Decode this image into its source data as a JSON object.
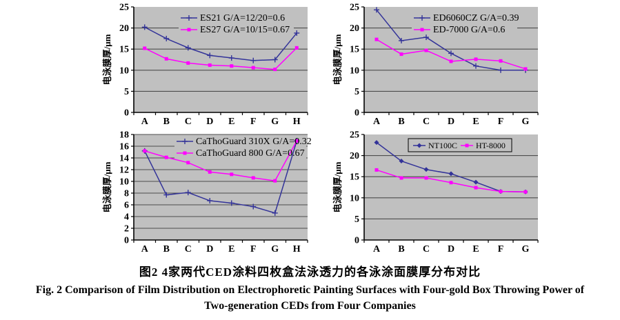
{
  "caption": {
    "zh": "图2  4家两代CED涂料四枚盒法泳透力的各泳涂面膜厚分布对比",
    "en_line1": "Fig. 2   Comparison of Film Distribution on Electrophoretic Painting Surfaces with Four-gold Box Throwing Power of",
    "en_line2": "Two-generation CEDs from Four Companies"
  },
  "colors": {
    "plot_bg": "#c0c0c0",
    "gridline": "#4d4d4d",
    "axis": "#000000",
    "series_blue": "#333399",
    "series_magenta": "#ff00ff"
  },
  "chart_data": [
    {
      "type": "line",
      "position": "top-left",
      "ylabel": "电泳膜厚/μm",
      "categories": [
        "A",
        "B",
        "C",
        "D",
        "E",
        "F",
        "G",
        "H"
      ],
      "ylim": [
        0,
        25
      ],
      "ytick_step": 5,
      "top_gridline": false,
      "grid": true,
      "legend_style": "stacked",
      "series": [
        {
          "name": "ES21 G/A=12/20=0.6",
          "color": "#333399",
          "marker": "plus",
          "values": [
            20.2,
            17.5,
            15.3,
            13.5,
            12.9,
            12.3,
            12.5,
            18.8
          ]
        },
        {
          "name": "ES27 G/A=10/15=0.67",
          "color": "#ff00ff",
          "marker": "square",
          "values": [
            15.2,
            12.7,
            11.7,
            11.2,
            11.0,
            10.6,
            10.2,
            15.3
          ]
        }
      ]
    },
    {
      "type": "line",
      "position": "top-right",
      "ylabel": "电泳膜厚/μm",
      "categories": [
        "A",
        "B",
        "C",
        "D",
        "E",
        "F",
        "G"
      ],
      "ylim": [
        0,
        25
      ],
      "ytick_step": 5,
      "top_gridline": false,
      "grid": true,
      "legend_style": "stacked",
      "series": [
        {
          "name": "ED6060CZ G/A=0.39",
          "color": "#333399",
          "marker": "plus",
          "values": [
            24.3,
            17.0,
            17.8,
            14.0,
            11.0,
            10.0,
            10.0
          ]
        },
        {
          "name": "ED-7000 G/A=0.6",
          "color": "#ff00ff",
          "marker": "square",
          "values": [
            17.3,
            13.8,
            14.7,
            12.1,
            12.6,
            12.2,
            10.3
          ]
        }
      ]
    },
    {
      "type": "line",
      "position": "bottom-left",
      "ylabel": "电泳膜厚/μm",
      "categories": [
        "A",
        "B",
        "C",
        "D",
        "E",
        "F",
        "G",
        "H"
      ],
      "ylim": [
        0,
        18
      ],
      "ytick_step": 2,
      "top_gridline": true,
      "grid": true,
      "legend_style": "stacked",
      "series": [
        {
          "name": "CaThoGuard 310X G/A=0.32",
          "color": "#333399",
          "marker": "plus",
          "values": [
            15.2,
            7.7,
            8.1,
            6.7,
            6.3,
            5.7,
            4.6,
            16.9
          ]
        },
        {
          "name": "CaThoGuard 800 G/A=0.67",
          "color": "#ff00ff",
          "marker": "square",
          "values": [
            15.2,
            14.1,
            13.2,
            11.6,
            11.2,
            10.6,
            10.1,
            16.9
          ]
        }
      ]
    },
    {
      "type": "line",
      "position": "bottom-right",
      "ylabel": "电泳膜厚/μm",
      "categories": [
        "A",
        "B",
        "C",
        "D",
        "E",
        "F",
        "G"
      ],
      "ylim": [
        0,
        25
      ],
      "ytick_step": 5,
      "top_gridline": false,
      "grid": true,
      "legend_style": "boxed",
      "series": [
        {
          "name": "NT100C",
          "color": "#333399",
          "marker": "diamond",
          "values": [
            23.1,
            18.7,
            16.7,
            15.7,
            13.7,
            11.5,
            11.4
          ]
        },
        {
          "name": "HT-8000",
          "color": "#ff00ff",
          "marker": "square",
          "values": [
            16.6,
            14.7,
            14.7,
            13.6,
            12.4,
            11.5,
            11.4
          ]
        }
      ]
    }
  ]
}
